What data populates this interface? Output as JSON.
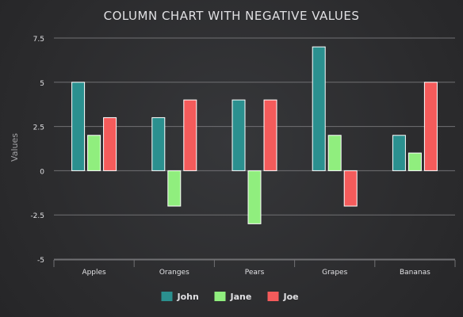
{
  "chart_data": {
    "type": "bar",
    "title": "COLUMN CHART WITH NEGATIVE VALUES",
    "ylabel": "Values",
    "xlabel": "",
    "categories": [
      "Apples",
      "Oranges",
      "Pears",
      "Grapes",
      "Bananas"
    ],
    "series": [
      {
        "name": "John",
        "color": "#2b908f",
        "values": [
          5,
          3,
          4,
          7,
          2
        ]
      },
      {
        "name": "Jane",
        "color": "#90ee7e",
        "values": [
          2,
          -2,
          -3,
          2,
          1
        ]
      },
      {
        "name": "Joe",
        "color": "#f45b5b",
        "values": [
          3,
          4,
          4,
          -2,
          5
        ]
      }
    ],
    "ylim": [
      -5,
      7.5
    ],
    "yticks": [
      -5,
      -2.5,
      0,
      2.5,
      5,
      7.5
    ],
    "ytick_labels": [
      "-5",
      "-2.5",
      "0",
      "2.5",
      "5",
      "7.5"
    ],
    "grid": true,
    "legend": "bottom-center"
  }
}
